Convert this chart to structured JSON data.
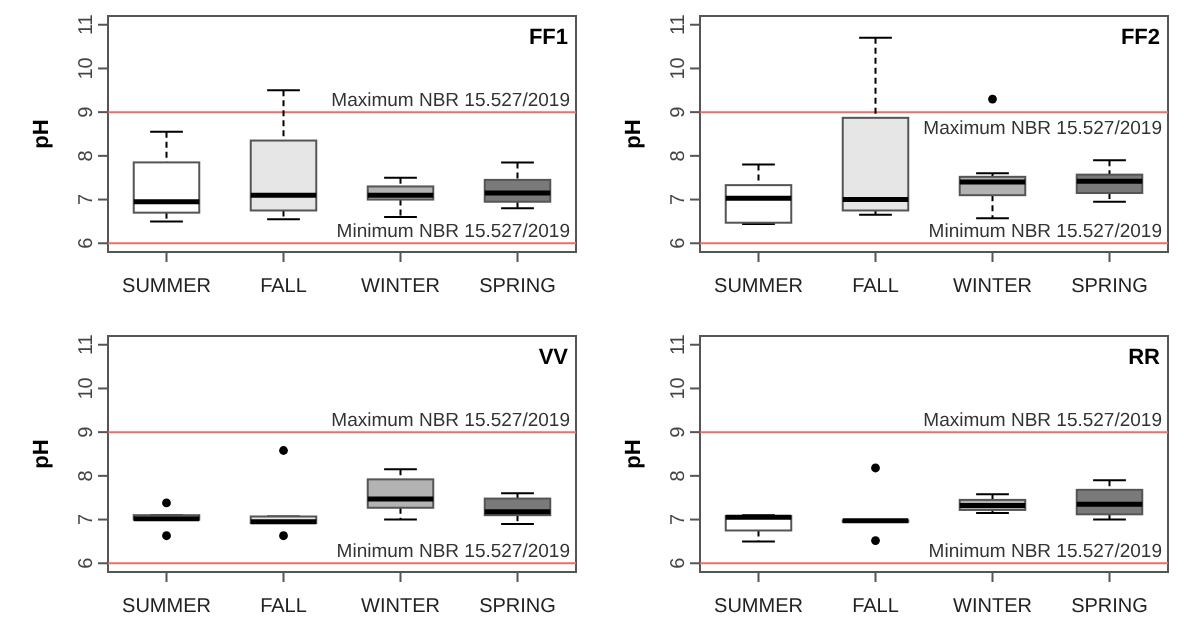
{
  "chart_data": [
    {
      "type": "box",
      "title": "FF1",
      "ylabel": "pH",
      "categories": [
        "SUMMER",
        "FALL",
        "WINTER",
        "SPRING"
      ],
      "colors": [
        "#ffffff",
        "#e6e6e6",
        "#b3b3b3",
        "#7a7a7a"
      ],
      "ylim": [
        5.8,
        11.2
      ],
      "yticks": [
        6,
        7,
        8,
        9,
        10,
        11
      ],
      "grid": false,
      "boxes": [
        {
          "low": 6.5,
          "q1": 6.7,
          "median": 6.95,
          "q3": 7.85,
          "high": 8.55
        },
        {
          "low": 6.55,
          "q1": 6.75,
          "median": 7.1,
          "q3": 8.35,
          "high": 9.5
        },
        {
          "low": 6.6,
          "q1": 7.0,
          "median": 7.1,
          "q3": 7.3,
          "high": 7.5
        },
        {
          "low": 6.8,
          "q1": 6.95,
          "median": 7.15,
          "q3": 7.45,
          "high": 7.85
        }
      ],
      "ref_lines": [
        {
          "axis": "y",
          "value": 9,
          "label": "Maximum NBR 15.527/2019",
          "color": "#f26b6b"
        },
        {
          "axis": "y",
          "value": 6,
          "label": "Minimum NBR 15.527/2019",
          "color": "#f26b6b"
        }
      ]
    },
    {
      "type": "box",
      "title": "FF2",
      "ylabel": "pH",
      "categories": [
        "SUMMER",
        "FALL",
        "WINTER",
        "SPRING"
      ],
      "colors": [
        "#ffffff",
        "#e6e6e6",
        "#b3b3b3",
        "#7a7a7a"
      ],
      "ylim": [
        5.8,
        11.2
      ],
      "yticks": [
        6,
        7,
        8,
        9,
        10,
        11
      ],
      "grid": false,
      "boxes": [
        {
          "low": 6.44,
          "q1": 6.47,
          "median": 7.03,
          "q3": 7.33,
          "high": 7.8
        },
        {
          "low": 6.65,
          "q1": 6.75,
          "median": 7.0,
          "q3": 8.87,
          "high": 10.7
        },
        {
          "low": 6.57,
          "q1": 7.1,
          "median": 7.4,
          "q3": 7.52,
          "high": 7.6,
          "outliers": [
            9.3
          ]
        },
        {
          "low": 6.95,
          "q1": 7.15,
          "median": 7.42,
          "q3": 7.57,
          "high": 7.9
        }
      ],
      "ref_lines": [
        {
          "axis": "y",
          "value": 9,
          "label": "Maximum NBR 15.527/2019",
          "color": "#f26b6b"
        },
        {
          "axis": "y",
          "value": 6,
          "label": "Minimum NBR 15.527/2019",
          "color": "#f26b6b"
        }
      ]
    },
    {
      "type": "box",
      "title": "VV",
      "ylabel": "pH",
      "categories": [
        "SUMMER",
        "FALL",
        "WINTER",
        "SPRING"
      ],
      "colors": [
        "#ffffff",
        "#e6e6e6",
        "#b3b3b3",
        "#7a7a7a"
      ],
      "ylim": [
        5.8,
        11.2
      ],
      "yticks": [
        6,
        7,
        8,
        9,
        10,
        11
      ],
      "grid": false,
      "boxes": [
        {
          "low": 7.0,
          "q1": 7.0,
          "median": 7.02,
          "q3": 7.1,
          "high": 7.1,
          "outliers": [
            7.38,
            6.63
          ]
        },
        {
          "low": 6.92,
          "q1": 6.92,
          "median": 6.95,
          "q3": 7.07,
          "high": 7.07,
          "outliers": [
            8.58,
            6.63
          ]
        },
        {
          "low": 7.0,
          "q1": 7.27,
          "median": 7.47,
          "q3": 7.92,
          "high": 8.15
        },
        {
          "low": 6.9,
          "q1": 7.1,
          "median": 7.18,
          "q3": 7.48,
          "high": 7.6
        }
      ],
      "ref_lines": [
        {
          "axis": "y",
          "value": 9,
          "label": "Maximum NBR 15.527/2019",
          "color": "#f26b6b"
        },
        {
          "axis": "y",
          "value": 6,
          "label": "Minimum NBR 15.527/2019",
          "color": "#f26b6b"
        }
      ]
    },
    {
      "type": "box",
      "title": "RR",
      "ylabel": "pH",
      "categories": [
        "SUMMER",
        "FALL",
        "WINTER",
        "SPRING"
      ],
      "colors": [
        "#ffffff",
        "#e6e6e6",
        "#b3b3b3",
        "#7a7a7a"
      ],
      "ylim": [
        5.8,
        11.2
      ],
      "yticks": [
        6,
        7,
        8,
        9,
        10,
        11
      ],
      "grid": false,
      "boxes": [
        {
          "low": 6.5,
          "q1": 6.75,
          "median": 7.05,
          "q3": 7.08,
          "high": 7.1
        },
        {
          "low": 6.95,
          "q1": 6.95,
          "median": 6.97,
          "q3": 6.98,
          "high": 6.98,
          "outliers": [
            8.18,
            6.52
          ]
        },
        {
          "low": 7.15,
          "q1": 7.22,
          "median": 7.32,
          "q3": 7.45,
          "high": 7.58
        },
        {
          "low": 7.0,
          "q1": 7.12,
          "median": 7.35,
          "q3": 7.68,
          "high": 7.9
        }
      ],
      "ref_lines": [
        {
          "axis": "y",
          "value": 9,
          "label": "Maximum NBR 15.527/2019",
          "color": "#f26b6b"
        },
        {
          "axis": "y",
          "value": 6,
          "label": "Minimum NBR 15.527/2019",
          "color": "#f26b6b"
        }
      ]
    }
  ]
}
